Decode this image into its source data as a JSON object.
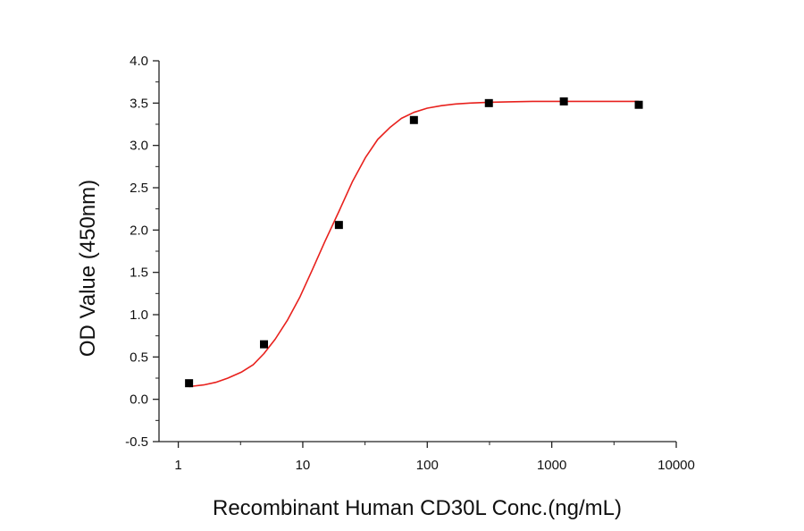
{
  "chart_data": {
    "type": "scatter",
    "title": "",
    "xlabel": "Recombinant Human CD30L Conc.(ng/mL)",
    "ylabel": "OD Value (450nm)",
    "x_scale": "log",
    "xlim": [
      0.7,
      10000
    ],
    "ylim": [
      -0.5,
      4.0
    ],
    "x_ticks": [
      1,
      10,
      100,
      1000,
      10000
    ],
    "x_tick_labels": [
      "1",
      "10",
      "100",
      "1000",
      "10000"
    ],
    "y_ticks": [
      -0.5,
      0.0,
      0.5,
      1.0,
      1.5,
      2.0,
      2.5,
      3.0,
      3.5,
      4.0
    ],
    "y_tick_labels": [
      "-0.5",
      "0.0",
      "0.5",
      "1.0",
      "1.5",
      "2.0",
      "2.5",
      "3.0",
      "3.5",
      "4.0"
    ],
    "grid": false,
    "series": [
      {
        "type": "scatter",
        "marker": "square",
        "color": "#000000",
        "x": [
          1.22,
          4.88,
          19.5,
          78.1,
          312.5,
          1250,
          5000
        ],
        "y": [
          0.19,
          0.65,
          2.06,
          3.3,
          3.5,
          3.52,
          3.48
        ]
      },
      {
        "type": "line",
        "color": "#e8211d",
        "x": [
          1.22,
          1.6,
          2.0,
          2.5,
          3.2,
          4.0,
          4.88,
          6.0,
          7.5,
          9.5,
          12,
          15,
          19.5,
          25,
          32,
          40,
          50,
          62,
          78.1,
          100,
          130,
          170,
          220,
          312.5,
          450,
          700,
          1250,
          2500,
          5000
        ],
        "y": [
          0.15,
          0.17,
          0.2,
          0.25,
          0.32,
          0.41,
          0.54,
          0.71,
          0.93,
          1.21,
          1.54,
          1.86,
          2.22,
          2.57,
          2.86,
          3.07,
          3.21,
          3.32,
          3.39,
          3.44,
          3.47,
          3.49,
          3.5,
          3.51,
          3.515,
          3.52,
          3.52,
          3.52,
          3.52
        ]
      }
    ]
  }
}
